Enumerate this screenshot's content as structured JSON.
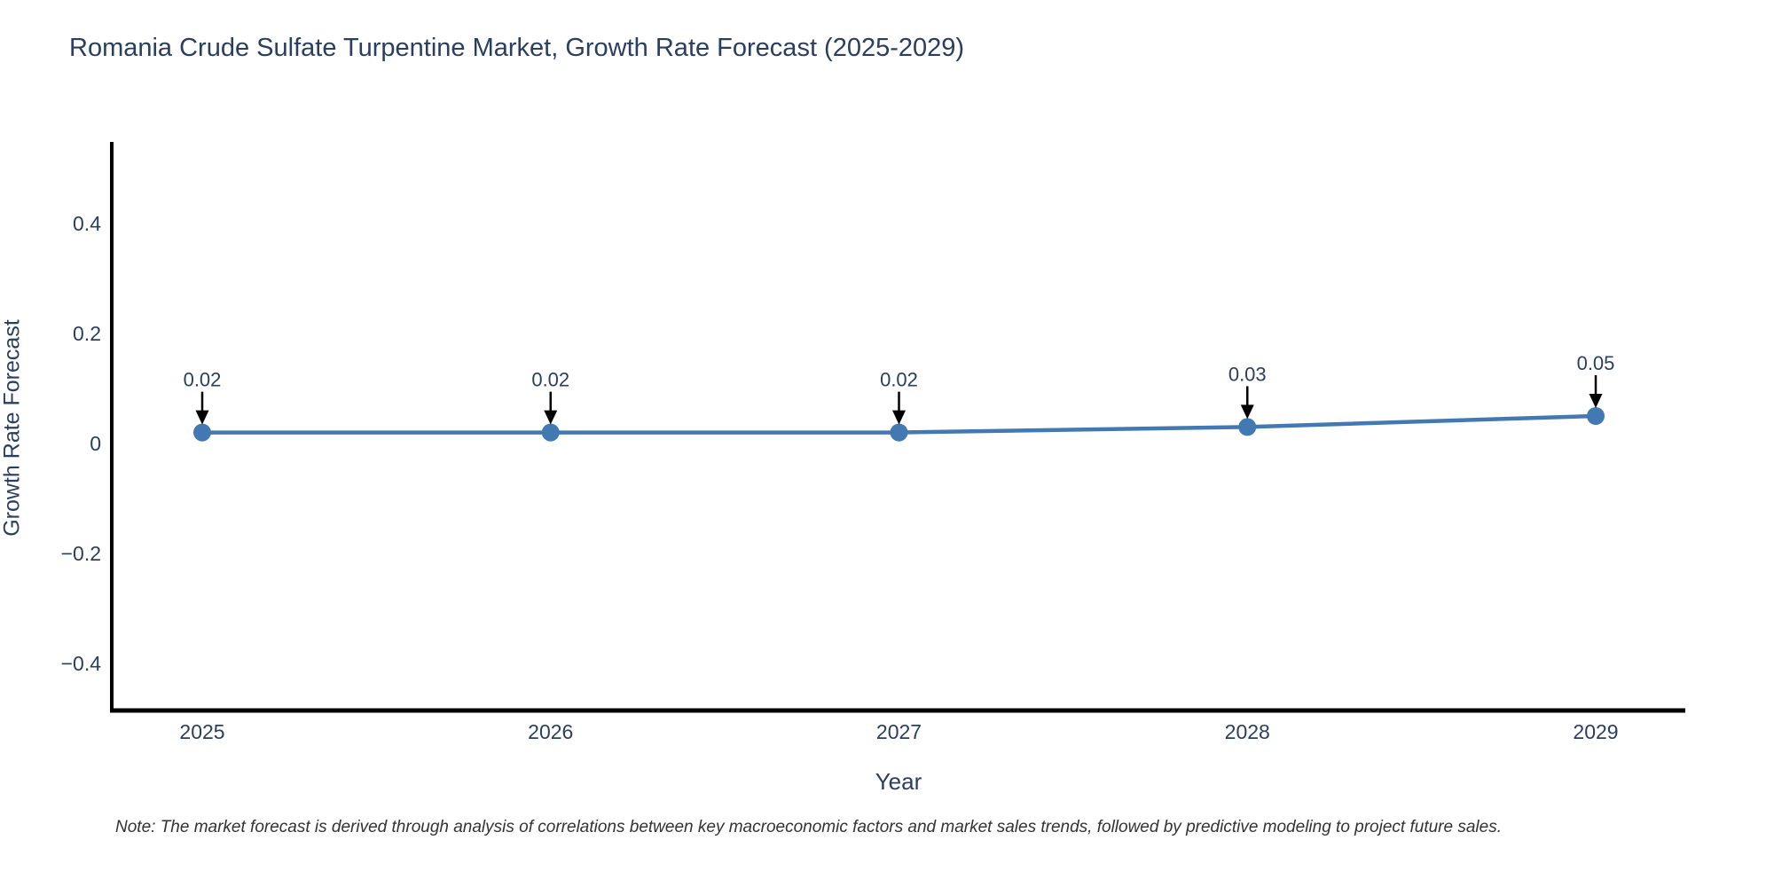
{
  "header": {
    "title": "Romania Crude Sulfate Turpentine Market, Growth Rate Forecast (2025-2029)"
  },
  "footer": {
    "note": "Note: The market forecast is derived through analysis of correlations between key macroeconomic factors and market sales trends, followed by predictive modeling to project future sales."
  },
  "chart_data": {
    "type": "line",
    "title": "Romania Crude Sulfate Turpentine Market, Growth Rate Forecast (2025-2029)",
    "xlabel": "Year",
    "ylabel": "Growth Rate Forecast",
    "categories": [
      "2025",
      "2026",
      "2027",
      "2028",
      "2029"
    ],
    "values": [
      0.02,
      0.02,
      0.02,
      0.03,
      0.05
    ],
    "point_labels": [
      "0.02",
      "0.02",
      "0.02",
      "0.03",
      "0.05"
    ],
    "y_ticks": [
      {
        "value": 0.4,
        "label": "0.4"
      },
      {
        "value": 0.2,
        "label": "0.2"
      },
      {
        "value": 0,
        "label": "0"
      },
      {
        "value": -0.2,
        "label": "−0.2"
      },
      {
        "value": -0.4,
        "label": "−0.4"
      }
    ],
    "ylim": [
      -0.49,
      0.55
    ],
    "grid": false,
    "legend_position": "none",
    "colors": {
      "line": "#4379b2",
      "marker": "#4379b2",
      "axis": "#000000",
      "tick_text": "#2a3f5f",
      "annotation_text": "#2a3f5f",
      "arrow": "#000000"
    }
  }
}
